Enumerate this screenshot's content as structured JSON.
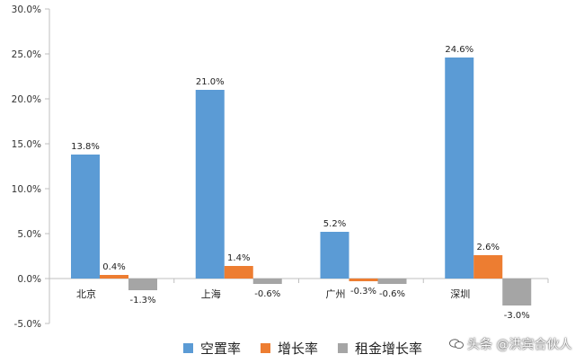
{
  "chart_data": {
    "type": "bar",
    "categories": [
      "北京",
      "上海",
      "广州",
      "深圳"
    ],
    "series": [
      {
        "name": "空置率",
        "color": "#5B9BD5",
        "values": [
          13.8,
          21.0,
          5.2,
          24.6
        ],
        "labels": [
          "13.8%",
          "21.0%",
          "5.2%",
          "24.6%"
        ]
      },
      {
        "name": "增长率",
        "color": "#ED7D31",
        "values": [
          0.4,
          1.4,
          -0.3,
          2.6
        ],
        "labels": [
          "0.4%",
          "1.4%",
          "-0.3%",
          "2.6%"
        ]
      },
      {
        "name": "租金增长率",
        "color": "#A5A5A5",
        "values": [
          -1.3,
          -0.6,
          -0.6,
          -3.0
        ],
        "labels": [
          "-1.3%",
          "-0.6%",
          "-0.6%",
          "-3.0%"
        ]
      }
    ],
    "ylim": [
      -5,
      30
    ],
    "yticks": [
      -5,
      0,
      5,
      10,
      15,
      20,
      25,
      30
    ],
    "ytick_labels": [
      "-5.0%",
      "0.0%",
      "5.0%",
      "10.0%",
      "15.0%",
      "20.0%",
      "25.0%",
      "30.0%"
    ],
    "grid": false,
    "legend_position": "bottom"
  },
  "watermark": {
    "text": "头条 @洪宾合伙人",
    "icon": "chat-bubble-icon"
  }
}
